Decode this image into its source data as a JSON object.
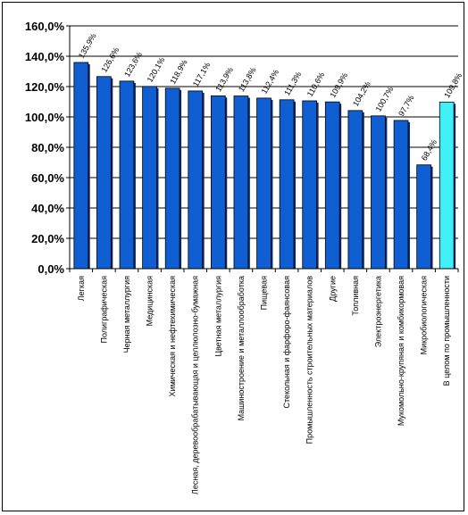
{
  "chart_data": {
    "type": "bar",
    "title": "",
    "xlabel": "",
    "ylabel": "",
    "ylim": [
      0,
      160
    ],
    "y_ticks": [
      "0,0%",
      "20,0%",
      "40,0%",
      "60,0%",
      "80,0%",
      "100,0%",
      "120,0%",
      "140,0%",
      "160,0%"
    ],
    "grid": "horizontal",
    "legend": "none",
    "categories": [
      "Легкая",
      "Полиграфическая",
      "Черная металлургия",
      "Медицинская",
      "Химическая и нефтехимическая",
      "Лесная, деревообрабатывающая и целлюлозно-бумажная",
      "Цветная металлургия",
      "Машиностроение и металлообработка",
      "Пищевая",
      "Стекольная и фарфоро-фаянсовая",
      "Промышленность строительных материалов",
      "Другие",
      "Топливная",
      "Электроэнергетика",
      "Мукомольно-крупяная и комбикормовая",
      "Микробиологическая",
      "В целом по промышленности"
    ],
    "values": [
      135.9,
      126.6,
      123.6,
      120.1,
      118.9,
      117.1,
      113.9,
      113.8,
      112.4,
      111.3,
      110.6,
      109.9,
      104.2,
      100.7,
      97.7,
      68.4,
      109.8
    ],
    "data_labels": [
      "135,9%",
      "126,6%",
      "123,6%",
      "120,1%",
      "118,9%",
      "117,1%",
      "113,9%",
      "113,8%",
      "112,4%",
      "111,3%",
      "110,6%",
      "109,9%",
      "104,2%",
      "100,7%",
      "97,7%",
      "68,4%",
      "109,8%"
    ],
    "highlight_index": 16,
    "colors": {
      "bar": "#0f5fd2",
      "bar_highlight": "#3ff0f8",
      "bar_stroke": "#000000",
      "grid": "#000000"
    }
  }
}
